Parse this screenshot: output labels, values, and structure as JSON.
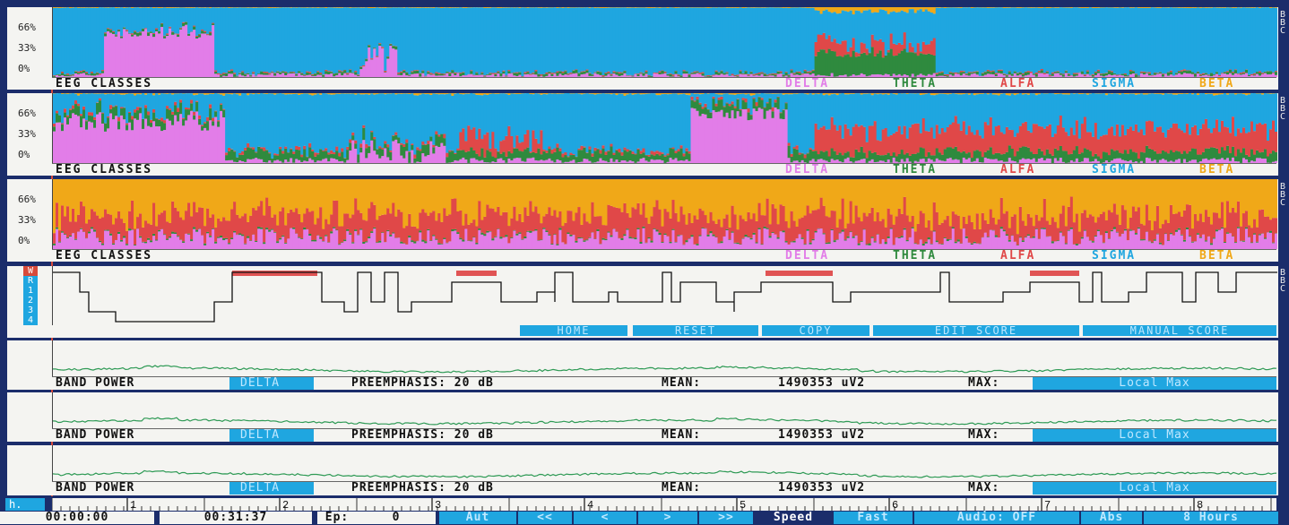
{
  "eeg_panels": [
    {
      "y_ticks": [
        "66%",
        "33%",
        "0%"
      ],
      "title": "EEG CLASSES",
      "legend": [
        "DELTA",
        "THETA",
        "ALFA",
        "SIGMA",
        "BETA"
      ]
    },
    {
      "y_ticks": [
        "66%",
        "33%",
        "0%"
      ],
      "title": "EEG CLASSES",
      "legend": [
        "DELTA",
        "THETA",
        "ALFA",
        "SIGMA",
        "BETA"
      ]
    },
    {
      "y_ticks": [
        "66%",
        "33%",
        "0%"
      ],
      "title": "EEG CLASSES",
      "legend": [
        "DELTA",
        "THETA",
        "ALFA",
        "SIGMA",
        "BETA"
      ]
    }
  ],
  "colors": {
    "delta": "#e27de8",
    "theta": "#2f8a3e",
    "alfa": "#e04848",
    "sigma": "#1fa6e0",
    "beta": "#f0a818",
    "hypno_line": "#111111",
    "rem_bar": "#e05454",
    "band_line": "#2e9a55"
  },
  "hypnogram": {
    "stages": [
      "W",
      "R",
      "1",
      "2",
      "3",
      "4"
    ],
    "buttons": [
      "HOME",
      "RESET",
      "COPY",
      "EDIT SCORE",
      "MANUAL SCORE"
    ]
  },
  "band_panels": [
    {
      "label": "BAND POWER",
      "band": "DELTA",
      "preemphasis": "PREEMPHASIS: 20 dB",
      "mean_label": "MEAN:",
      "mean_value": "1490353 uV2",
      "max_label": "MAX:",
      "max_value": "Local Max"
    },
    {
      "label": "BAND POWER",
      "band": "DELTA",
      "preemphasis": "PREEMPHASIS: 20 dB",
      "mean_label": "MEAN:",
      "mean_value": "1490353 uV2",
      "max_label": "MAX:",
      "max_value": "Local Max"
    },
    {
      "label": "BAND POWER",
      "band": "DELTA",
      "preemphasis": "PREEMPHASIS: 20 dB",
      "mean_label": "MEAN:",
      "mean_value": "1490353 uV2",
      "max_label": "MAX:",
      "max_value": "Local Max"
    }
  ],
  "timeline": {
    "unit": "h.",
    "hours": [
      "1",
      "2",
      "3",
      "4",
      "5",
      "6",
      "7",
      "8"
    ]
  },
  "status": {
    "start": "00:00:00",
    "cursor": "00:31:37",
    "ep_label": "Ep:",
    "ep_value": "0",
    "nav": [
      "Aut",
      "<<",
      "<",
      ">",
      ">>"
    ],
    "speed_label": "Speed",
    "speed_value": "Fast",
    "audio": "Audio: OFF",
    "abs": "Abs",
    "range": "8 Hours"
  }
}
